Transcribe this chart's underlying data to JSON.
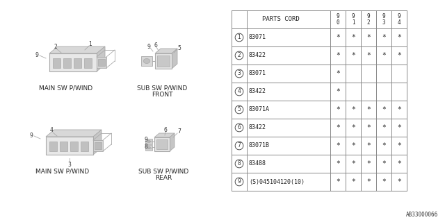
{
  "bg_color": "#ffffff",
  "rows": [
    {
      "num": "1",
      "part": "83071",
      "cols": [
        "*",
        "*",
        "*",
        "*",
        "*"
      ]
    },
    {
      "num": "2",
      "part": "83422",
      "cols": [
        "*",
        "*",
        "*",
        "*",
        "*"
      ]
    },
    {
      "num": "3",
      "part": "83071",
      "cols": [
        "*",
        "",
        "",
        "",
        ""
      ]
    },
    {
      "num": "4",
      "part": "83422",
      "cols": [
        "*",
        "",
        "",
        "",
        ""
      ]
    },
    {
      "num": "5",
      "part": "83071A",
      "cols": [
        "*",
        "*",
        "*",
        "*",
        "*"
      ]
    },
    {
      "num": "6",
      "part": "83422",
      "cols": [
        "*",
        "*",
        "*",
        "*",
        "*"
      ]
    },
    {
      "num": "7",
      "part": "83071B",
      "cols": [
        "*",
        "*",
        "*",
        "*",
        "*"
      ]
    },
    {
      "num": "8",
      "part": "83488",
      "cols": [
        "*",
        "*",
        "*",
        "*",
        "*"
      ]
    },
    {
      "num": "9",
      "part": "(S)045104120(10)",
      "cols": [
        "*",
        "*",
        "*",
        "*",
        "*"
      ]
    }
  ],
  "year_headers": [
    "9\n0",
    "9\n1",
    "9\n2",
    "9\n3",
    "9\n4"
  ],
  "line_color": "#aaaaaa",
  "text_color": "#222222",
  "table_line_color": "#888888",
  "catalog_num": "AB33000066",
  "diag_labels": {
    "tl": "MAIN SW P/WIND",
    "tr": "SUB SW P/WIND\nFRONT",
    "bl": "MAIN SW P/WIND",
    "br": "SUB SW P/WIND\nREAR"
  }
}
